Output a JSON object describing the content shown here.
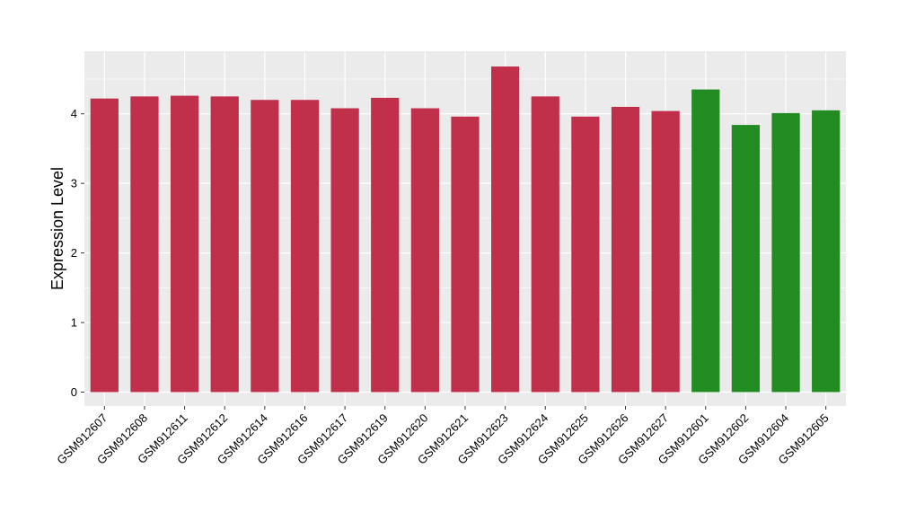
{
  "chart_data": {
    "type": "bar",
    "title": "",
    "xlabel": "",
    "ylabel": "Expression Level",
    "ylim": [
      -0.2,
      4.9
    ],
    "yticks": [
      0,
      1,
      2,
      3,
      4
    ],
    "grid": true,
    "panel_background": "#EBEBEB",
    "grid_color": "#FFFFFF",
    "categories": [
      "GSM912607",
      "GSM912608",
      "GSM912611",
      "GSM912612",
      "GSM912614",
      "GSM912616",
      "GSM912617",
      "GSM912619",
      "GSM912620",
      "GSM912621",
      "GSM912623",
      "GSM912624",
      "GSM912625",
      "GSM912626",
      "GSM912627",
      "GSM912601",
      "GSM912602",
      "GSM912604",
      "GSM912605"
    ],
    "values": [
      4.22,
      4.25,
      4.26,
      4.25,
      4.2,
      4.2,
      4.08,
      4.23,
      4.08,
      3.96,
      4.68,
      4.25,
      3.96,
      4.1,
      4.04,
      4.35,
      3.84,
      4.01,
      4.05
    ],
    "colors": [
      "#C1304B",
      "#C1304B",
      "#C1304B",
      "#C1304B",
      "#C1304B",
      "#C1304B",
      "#C1304B",
      "#C1304B",
      "#C1304B",
      "#C1304B",
      "#C1304B",
      "#C1304B",
      "#C1304B",
      "#C1304B",
      "#C1304B",
      "#228B22",
      "#228B22",
      "#228B22",
      "#228B22"
    ]
  }
}
